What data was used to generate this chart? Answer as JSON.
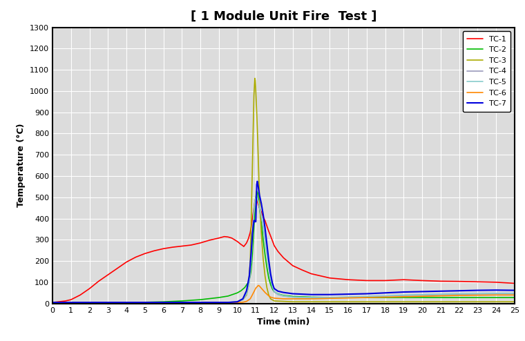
{
  "title": "[ 1 Module Unit Fire  Test ]",
  "xlabel": "Time (min)",
  "ylabel": "Temperature (°C)",
  "xlim": [
    0,
    25
  ],
  "ylim": [
    0,
    1300
  ],
  "xticks": [
    0,
    1,
    2,
    3,
    4,
    5,
    6,
    7,
    8,
    9,
    10,
    11,
    12,
    13,
    14,
    15,
    16,
    17,
    18,
    19,
    20,
    21,
    22,
    23,
    24,
    25
  ],
  "yticks": [
    0,
    100,
    200,
    300,
    400,
    500,
    600,
    700,
    800,
    900,
    1000,
    1100,
    1200,
    1300
  ],
  "background_color": "#ffffff",
  "plot_background_color": "#dcdcdc",
  "grid_color": "#ffffff",
  "title_fontsize": 13,
  "axis_label_fontsize": 9,
  "tick_fontsize": 8,
  "series": [
    {
      "label": "TC-1",
      "color": "#ff0000",
      "linewidth": 1.2,
      "points": [
        [
          0,
          5
        ],
        [
          0.3,
          8
        ],
        [
          0.7,
          12
        ],
        [
          1,
          18
        ],
        [
          1.5,
          40
        ],
        [
          2,
          70
        ],
        [
          2.5,
          105
        ],
        [
          3,
          135
        ],
        [
          3.5,
          165
        ],
        [
          4,
          195
        ],
        [
          4.5,
          218
        ],
        [
          5,
          235
        ],
        [
          5.5,
          248
        ],
        [
          6,
          258
        ],
        [
          6.5,
          265
        ],
        [
          7,
          270
        ],
        [
          7.5,
          275
        ],
        [
          8,
          285
        ],
        [
          8.5,
          298
        ],
        [
          9,
          308
        ],
        [
          9.3,
          315
        ],
        [
          9.5,
          313
        ],
        [
          9.7,
          308
        ],
        [
          10.0,
          292
        ],
        [
          10.1,
          285
        ],
        [
          10.2,
          278
        ],
        [
          10.3,
          272
        ],
        [
          10.35,
          268
        ],
        [
          10.5,
          285
        ],
        [
          10.6,
          305
        ],
        [
          10.7,
          335
        ],
        [
          10.75,
          360
        ],
        [
          10.8,
          390
        ],
        [
          10.85,
          420
        ],
        [
          10.9,
          450
        ],
        [
          10.95,
          480
        ],
        [
          11.0,
          500
        ],
        [
          11.05,
          490
        ],
        [
          11.1,
          475
        ],
        [
          11.15,
          462
        ],
        [
          11.2,
          450
        ],
        [
          11.3,
          430
        ],
        [
          11.4,
          408
        ],
        [
          11.5,
          390
        ],
        [
          11.6,
          365
        ],
        [
          11.7,
          340
        ],
        [
          11.8,
          318
        ],
        [
          11.9,
          295
        ],
        [
          12.0,
          272
        ],
        [
          12.2,
          245
        ],
        [
          12.5,
          215
        ],
        [
          13,
          178
        ],
        [
          13.5,
          158
        ],
        [
          14,
          140
        ],
        [
          15,
          120
        ],
        [
          16,
          112
        ],
        [
          17,
          108
        ],
        [
          18,
          108
        ],
        [
          19,
          112
        ],
        [
          20,
          108
        ],
        [
          21,
          105
        ],
        [
          22,
          104
        ],
        [
          23,
          102
        ],
        [
          24,
          100
        ],
        [
          25,
          95
        ]
      ]
    },
    {
      "label": "TC-2",
      "color": "#00bb00",
      "linewidth": 1.2,
      "points": [
        [
          0,
          5
        ],
        [
          1,
          5
        ],
        [
          2,
          5
        ],
        [
          3,
          5
        ],
        [
          4,
          5
        ],
        [
          5,
          6
        ],
        [
          6,
          8
        ],
        [
          7,
          12
        ],
        [
          8,
          18
        ],
        [
          9,
          28
        ],
        [
          9.5,
          35
        ],
        [
          10,
          50
        ],
        [
          10.2,
          60
        ],
        [
          10.4,
          75
        ],
        [
          10.6,
          100
        ],
        [
          10.7,
          130
        ],
        [
          10.75,
          160
        ],
        [
          10.8,
          210
        ],
        [
          10.85,
          280
        ],
        [
          10.9,
          360
        ],
        [
          10.95,
          430
        ],
        [
          11.0,
          500
        ],
        [
          11.05,
          530
        ],
        [
          11.1,
          520
        ],
        [
          11.15,
          490
        ],
        [
          11.2,
          450
        ],
        [
          11.3,
          380
        ],
        [
          11.4,
          300
        ],
        [
          11.5,
          230
        ],
        [
          11.6,
          170
        ],
        [
          11.7,
          120
        ],
        [
          11.8,
          90
        ],
        [
          11.9,
          68
        ],
        [
          12.0,
          55
        ],
        [
          12.2,
          45
        ],
        [
          12.5,
          38
        ],
        [
          13,
          33
        ],
        [
          14,
          30
        ],
        [
          15,
          28
        ],
        [
          16,
          28
        ],
        [
          17,
          28
        ],
        [
          18,
          28
        ],
        [
          19,
          28
        ],
        [
          20,
          28
        ],
        [
          21,
          28
        ],
        [
          22,
          28
        ],
        [
          23,
          28
        ],
        [
          24,
          28
        ],
        [
          25,
          28
        ]
      ]
    },
    {
      "label": "TC-3",
      "color": "#aaaa00",
      "linewidth": 1.2,
      "points": [
        [
          0,
          5
        ],
        [
          1,
          5
        ],
        [
          2,
          5
        ],
        [
          3,
          5
        ],
        [
          4,
          5
        ],
        [
          5,
          5
        ],
        [
          6,
          5
        ],
        [
          7,
          5
        ],
        [
          8,
          5
        ],
        [
          9,
          5
        ],
        [
          9.5,
          5
        ],
        [
          10,
          8
        ],
        [
          10.3,
          18
        ],
        [
          10.5,
          40
        ],
        [
          10.6,
          80
        ],
        [
          10.7,
          200
        ],
        [
          10.75,
          380
        ],
        [
          10.8,
          580
        ],
        [
          10.85,
          780
        ],
        [
          10.88,
          900
        ],
        [
          10.9,
          980
        ],
        [
          10.93,
          1030
        ],
        [
          10.95,
          1060
        ],
        [
          10.97,
          1050
        ],
        [
          11.0,
          1000
        ],
        [
          11.05,
          900
        ],
        [
          11.1,
          780
        ],
        [
          11.15,
          640
        ],
        [
          11.2,
          500
        ],
        [
          11.3,
          330
        ],
        [
          11.4,
          210
        ],
        [
          11.5,
          130
        ],
        [
          11.6,
          75
        ],
        [
          11.7,
          40
        ],
        [
          11.8,
          22
        ],
        [
          12.0,
          12
        ],
        [
          12.5,
          10
        ],
        [
          13,
          8
        ],
        [
          14,
          8
        ],
        [
          15,
          8
        ],
        [
          20,
          8
        ],
        [
          25,
          8
        ]
      ]
    },
    {
      "label": "TC-4",
      "color": "#9999bb",
      "linewidth": 1.2,
      "points": [
        [
          0,
          5
        ],
        [
          1,
          5
        ],
        [
          2,
          5
        ],
        [
          3,
          5
        ],
        [
          4,
          5
        ],
        [
          5,
          5
        ],
        [
          6,
          5
        ],
        [
          7,
          5
        ],
        [
          8,
          5
        ],
        [
          9,
          5
        ],
        [
          9.5,
          5
        ],
        [
          10,
          8
        ],
        [
          10.3,
          18
        ],
        [
          10.5,
          45
        ],
        [
          10.65,
          100
        ],
        [
          10.75,
          200
        ],
        [
          10.82,
          310
        ],
        [
          10.87,
          390
        ],
        [
          10.9,
          430
        ],
        [
          10.95,
          460
        ],
        [
          11.0,
          480
        ],
        [
          11.05,
          500
        ],
        [
          11.1,
          490
        ],
        [
          11.15,
          470
        ],
        [
          11.2,
          450
        ],
        [
          11.3,
          410
        ],
        [
          11.4,
          360
        ],
        [
          11.5,
          300
        ],
        [
          11.6,
          235
        ],
        [
          11.7,
          170
        ],
        [
          11.8,
          115
        ],
        [
          11.9,
          78
        ],
        [
          12.0,
          55
        ],
        [
          12.2,
          42
        ],
        [
          12.5,
          35
        ],
        [
          13,
          30
        ],
        [
          14,
          28
        ],
        [
          15,
          28
        ],
        [
          16,
          30
        ],
        [
          17,
          32
        ],
        [
          18,
          35
        ],
        [
          19,
          38
        ],
        [
          20,
          40
        ],
        [
          21,
          42
        ],
        [
          22,
          44
        ],
        [
          23,
          45
        ],
        [
          24,
          46
        ],
        [
          25,
          46
        ]
      ]
    },
    {
      "label": "TC-5",
      "color": "#88cccc",
      "linewidth": 1.2,
      "points": [
        [
          0,
          5
        ],
        [
          1,
          5
        ],
        [
          2,
          5
        ],
        [
          3,
          5
        ],
        [
          4,
          5
        ],
        [
          5,
          5
        ],
        [
          6,
          5
        ],
        [
          7,
          5
        ],
        [
          8,
          5
        ],
        [
          9,
          5
        ],
        [
          9.5,
          5
        ],
        [
          10,
          8
        ],
        [
          10.3,
          18
        ],
        [
          10.5,
          45
        ],
        [
          10.65,
          100
        ],
        [
          10.75,
          200
        ],
        [
          10.82,
          320
        ],
        [
          10.87,
          400
        ],
        [
          10.9,
          445
        ],
        [
          10.95,
          480
        ],
        [
          11.0,
          500
        ],
        [
          11.05,
          510
        ],
        [
          11.1,
          495
        ],
        [
          11.15,
          475
        ],
        [
          11.2,
          455
        ],
        [
          11.3,
          415
        ],
        [
          11.4,
          365
        ],
        [
          11.5,
          305
        ],
        [
          11.6,
          238
        ],
        [
          11.7,
          172
        ],
        [
          11.8,
          118
        ],
        [
          11.9,
          80
        ],
        [
          12.0,
          58
        ],
        [
          12.2,
          44
        ],
        [
          12.5,
          36
        ],
        [
          13,
          30
        ],
        [
          14,
          28
        ],
        [
          15,
          28
        ],
        [
          16,
          30
        ],
        [
          17,
          33
        ],
        [
          18,
          36
        ],
        [
          19,
          40
        ],
        [
          20,
          42
        ],
        [
          21,
          44
        ],
        [
          22,
          46
        ],
        [
          23,
          47
        ],
        [
          24,
          48
        ],
        [
          25,
          48
        ]
      ]
    },
    {
      "label": "TC-6",
      "color": "#ff8800",
      "linewidth": 1.2,
      "points": [
        [
          0,
          5
        ],
        [
          1,
          5
        ],
        [
          2,
          5
        ],
        [
          3,
          5
        ],
        [
          4,
          5
        ],
        [
          5,
          5
        ],
        [
          6,
          5
        ],
        [
          7,
          5
        ],
        [
          8,
          5
        ],
        [
          9,
          5
        ],
        [
          9.5,
          5
        ],
        [
          10,
          5
        ],
        [
          10.3,
          6
        ],
        [
          10.5,
          10
        ],
        [
          10.7,
          22
        ],
        [
          10.8,
          38
        ],
        [
          10.9,
          55
        ],
        [
          11.0,
          72
        ],
        [
          11.1,
          82
        ],
        [
          11.15,
          85
        ],
        [
          11.2,
          82
        ],
        [
          11.3,
          72
        ],
        [
          11.4,
          62
        ],
        [
          11.5,
          52
        ],
        [
          11.6,
          44
        ],
        [
          11.7,
          36
        ],
        [
          11.8,
          30
        ],
        [
          12.0,
          25
        ],
        [
          12.5,
          22
        ],
        [
          13,
          22
        ],
        [
          14,
          22
        ],
        [
          15,
          24
        ],
        [
          16,
          26
        ],
        [
          17,
          28
        ],
        [
          18,
          30
        ],
        [
          19,
          32
        ],
        [
          20,
          34
        ],
        [
          21,
          36
        ],
        [
          22,
          38
        ],
        [
          23,
          39
        ],
        [
          24,
          40
        ],
        [
          25,
          40
        ]
      ]
    },
    {
      "label": "TC-7",
      "color": "#0000dd",
      "linewidth": 1.5,
      "points": [
        [
          0,
          5
        ],
        [
          1,
          5
        ],
        [
          2,
          5
        ],
        [
          3,
          5
        ],
        [
          4,
          5
        ],
        [
          5,
          5
        ],
        [
          6,
          5
        ],
        [
          7,
          5
        ],
        [
          8,
          5
        ],
        [
          9,
          5
        ],
        [
          9.5,
          5
        ],
        [
          10,
          8
        ],
        [
          10.3,
          22
        ],
        [
          10.5,
          60
        ],
        [
          10.65,
          130
        ],
        [
          10.75,
          240
        ],
        [
          10.82,
          330
        ],
        [
          10.87,
          370
        ],
        [
          10.9,
          390
        ],
        [
          10.93,
          390
        ],
        [
          10.97,
          385
        ],
        [
          11.0,
          385
        ],
        [
          11.05,
          560
        ],
        [
          11.08,
          575
        ],
        [
          11.1,
          568
        ],
        [
          11.15,
          540
        ],
        [
          11.2,
          510
        ],
        [
          11.3,
          470
        ],
        [
          11.4,
          418
        ],
        [
          11.5,
          355
        ],
        [
          11.6,
          280
        ],
        [
          11.7,
          205
        ],
        [
          11.8,
          140
        ],
        [
          11.9,
          95
        ],
        [
          12.0,
          70
        ],
        [
          12.2,
          58
        ],
        [
          12.5,
          52
        ],
        [
          13,
          46
        ],
        [
          14,
          42
        ],
        [
          15,
          42
        ],
        [
          16,
          44
        ],
        [
          17,
          46
        ],
        [
          18,
          50
        ],
        [
          19,
          54
        ],
        [
          20,
          56
        ],
        [
          21,
          58
        ],
        [
          22,
          60
        ],
        [
          23,
          62
        ],
        [
          24,
          63
        ],
        [
          25,
          62
        ]
      ]
    }
  ]
}
